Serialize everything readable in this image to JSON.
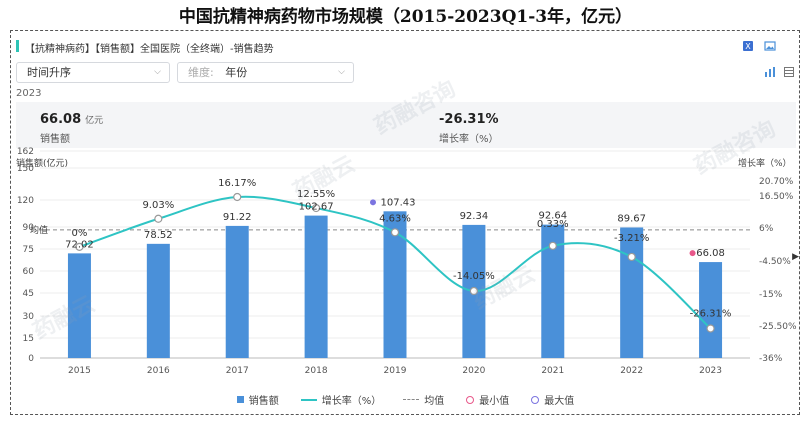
{
  "page_title": "中国抗精神病药物市场规模（2015-2023Q1-3年，亿元）",
  "panel": {
    "title": "【抗精神病药】【销售额】全国医院（全终端）-销售趋势",
    "accent_color": "#2ec4b6"
  },
  "toolbar": {
    "icons": [
      "excel-export-icon",
      "image-export-icon",
      "bar-chart-icon",
      "table-view-icon"
    ]
  },
  "filters": {
    "sort_select": "时间升序",
    "dimension_prefix": "维度:",
    "dimension_value": "年份"
  },
  "summary": {
    "year": "2023",
    "sales_value": "66.08",
    "sales_unit": "亿元",
    "sales_label": "销售额",
    "growth_value": "-26.31%",
    "growth_label": "增长率（%）"
  },
  "watermarks": [
    "药融云",
    "药融咨询",
    "药融云",
    "药融咨询",
    "药融云"
  ],
  "chart_data": {
    "type": "bar",
    "categories": [
      "2015",
      "2016",
      "2017",
      "2018",
      "2019",
      "2020",
      "2021",
      "2022",
      "2023"
    ],
    "series": [
      {
        "name": "销售额",
        "values": [
          72.02,
          78.52,
          91.22,
          102.67,
          107.43,
          92.34,
          92.64,
          89.67,
          66.08
        ],
        "labels": [
          "72.02",
          "78.52",
          "91.22",
          "102.67",
          "107.43",
          "92.34",
          "92.64",
          "89.67",
          "66.08"
        ],
        "color": "#4a90d9"
      },
      {
        "name": "增长率（%）",
        "type": "line",
        "values": [
          0,
          9.03,
          16.17,
          12.55,
          4.63,
          -14.05,
          0.33,
          -3.21,
          -26.31
        ],
        "labels": [
          "0%",
          "9.03%",
          "16.17%",
          "12.55%",
          "4.63%",
          "-14.05%",
          "0.33%",
          "-3.21%",
          "-26.31%"
        ],
        "color": "#2ec4c4"
      }
    ],
    "ylabel_left": "销售额(亿元)",
    "ylabel_right": "增长率（%）",
    "left_ticks": [
      "0",
      "15",
      "30",
      "45",
      "60",
      "75",
      "90",
      "120",
      "150",
      "162"
    ],
    "left_tick_values": [
      0,
      15,
      30,
      45,
      60,
      75,
      90,
      120,
      150,
      162
    ],
    "right_ticks": [
      "-36%",
      "-25.50%",
      "-15%",
      "-4.50%",
      "6%",
      "16.50%",
      "20.70%"
    ],
    "right_tick_values": [
      -36,
      -25.5,
      -15,
      -4.5,
      6,
      16.5,
      20.7
    ],
    "ylim_left": [
      0,
      162
    ],
    "ylim_right": [
      -36,
      20.7
    ],
    "average": 88,
    "average_label": "均值",
    "min_marker": {
      "category": "2023",
      "value": 66.08
    },
    "max_marker": {
      "category": "2019",
      "value": 107.43
    },
    "legend": [
      "销售额",
      "增长率（%）",
      "均值",
      "最小值",
      "最大值"
    ],
    "legend_position": "bottom",
    "colors": {
      "bar": "#4a90d9",
      "line": "#2ec4c4",
      "min": "#e8588a",
      "max": "#7b74e0",
      "average": "#888888"
    }
  }
}
